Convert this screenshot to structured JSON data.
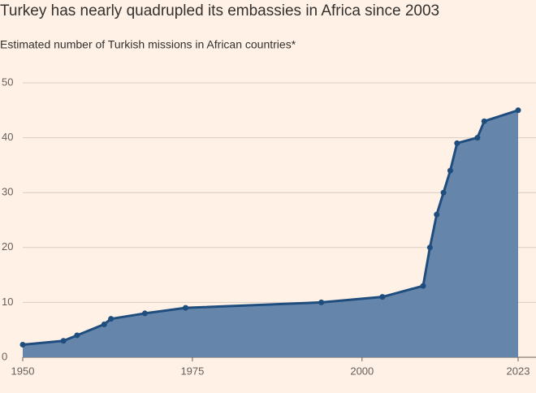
{
  "chart_data": {
    "type": "area",
    "title": "Turkey has nearly quadrupled its embassies in Africa since 2003",
    "subtitle": "Estimated number of Turkish missions in African countries*",
    "x": [
      1950,
      1956,
      1958,
      1962,
      1963,
      1968,
      1974,
      1994,
      2003,
      2009,
      2010,
      2011,
      2012,
      2013,
      2014,
      2017,
      2018,
      2023
    ],
    "series": [
      {
        "name": "Turkish missions",
        "color": "#1f4d7e",
        "values": [
          2.3,
          3,
          4,
          6,
          7,
          8,
          9,
          10,
          11,
          13,
          20,
          26,
          30,
          34,
          39,
          40,
          43,
          45
        ]
      }
    ],
    "fill_color": "#6586aa",
    "xlim": [
      1950,
      2023
    ],
    "xticks": [
      1950,
      1975,
      2000,
      2023
    ],
    "ylim": [
      0,
      50
    ],
    "yticks": [
      0,
      10,
      20,
      30,
      40,
      50
    ],
    "grid": true
  }
}
